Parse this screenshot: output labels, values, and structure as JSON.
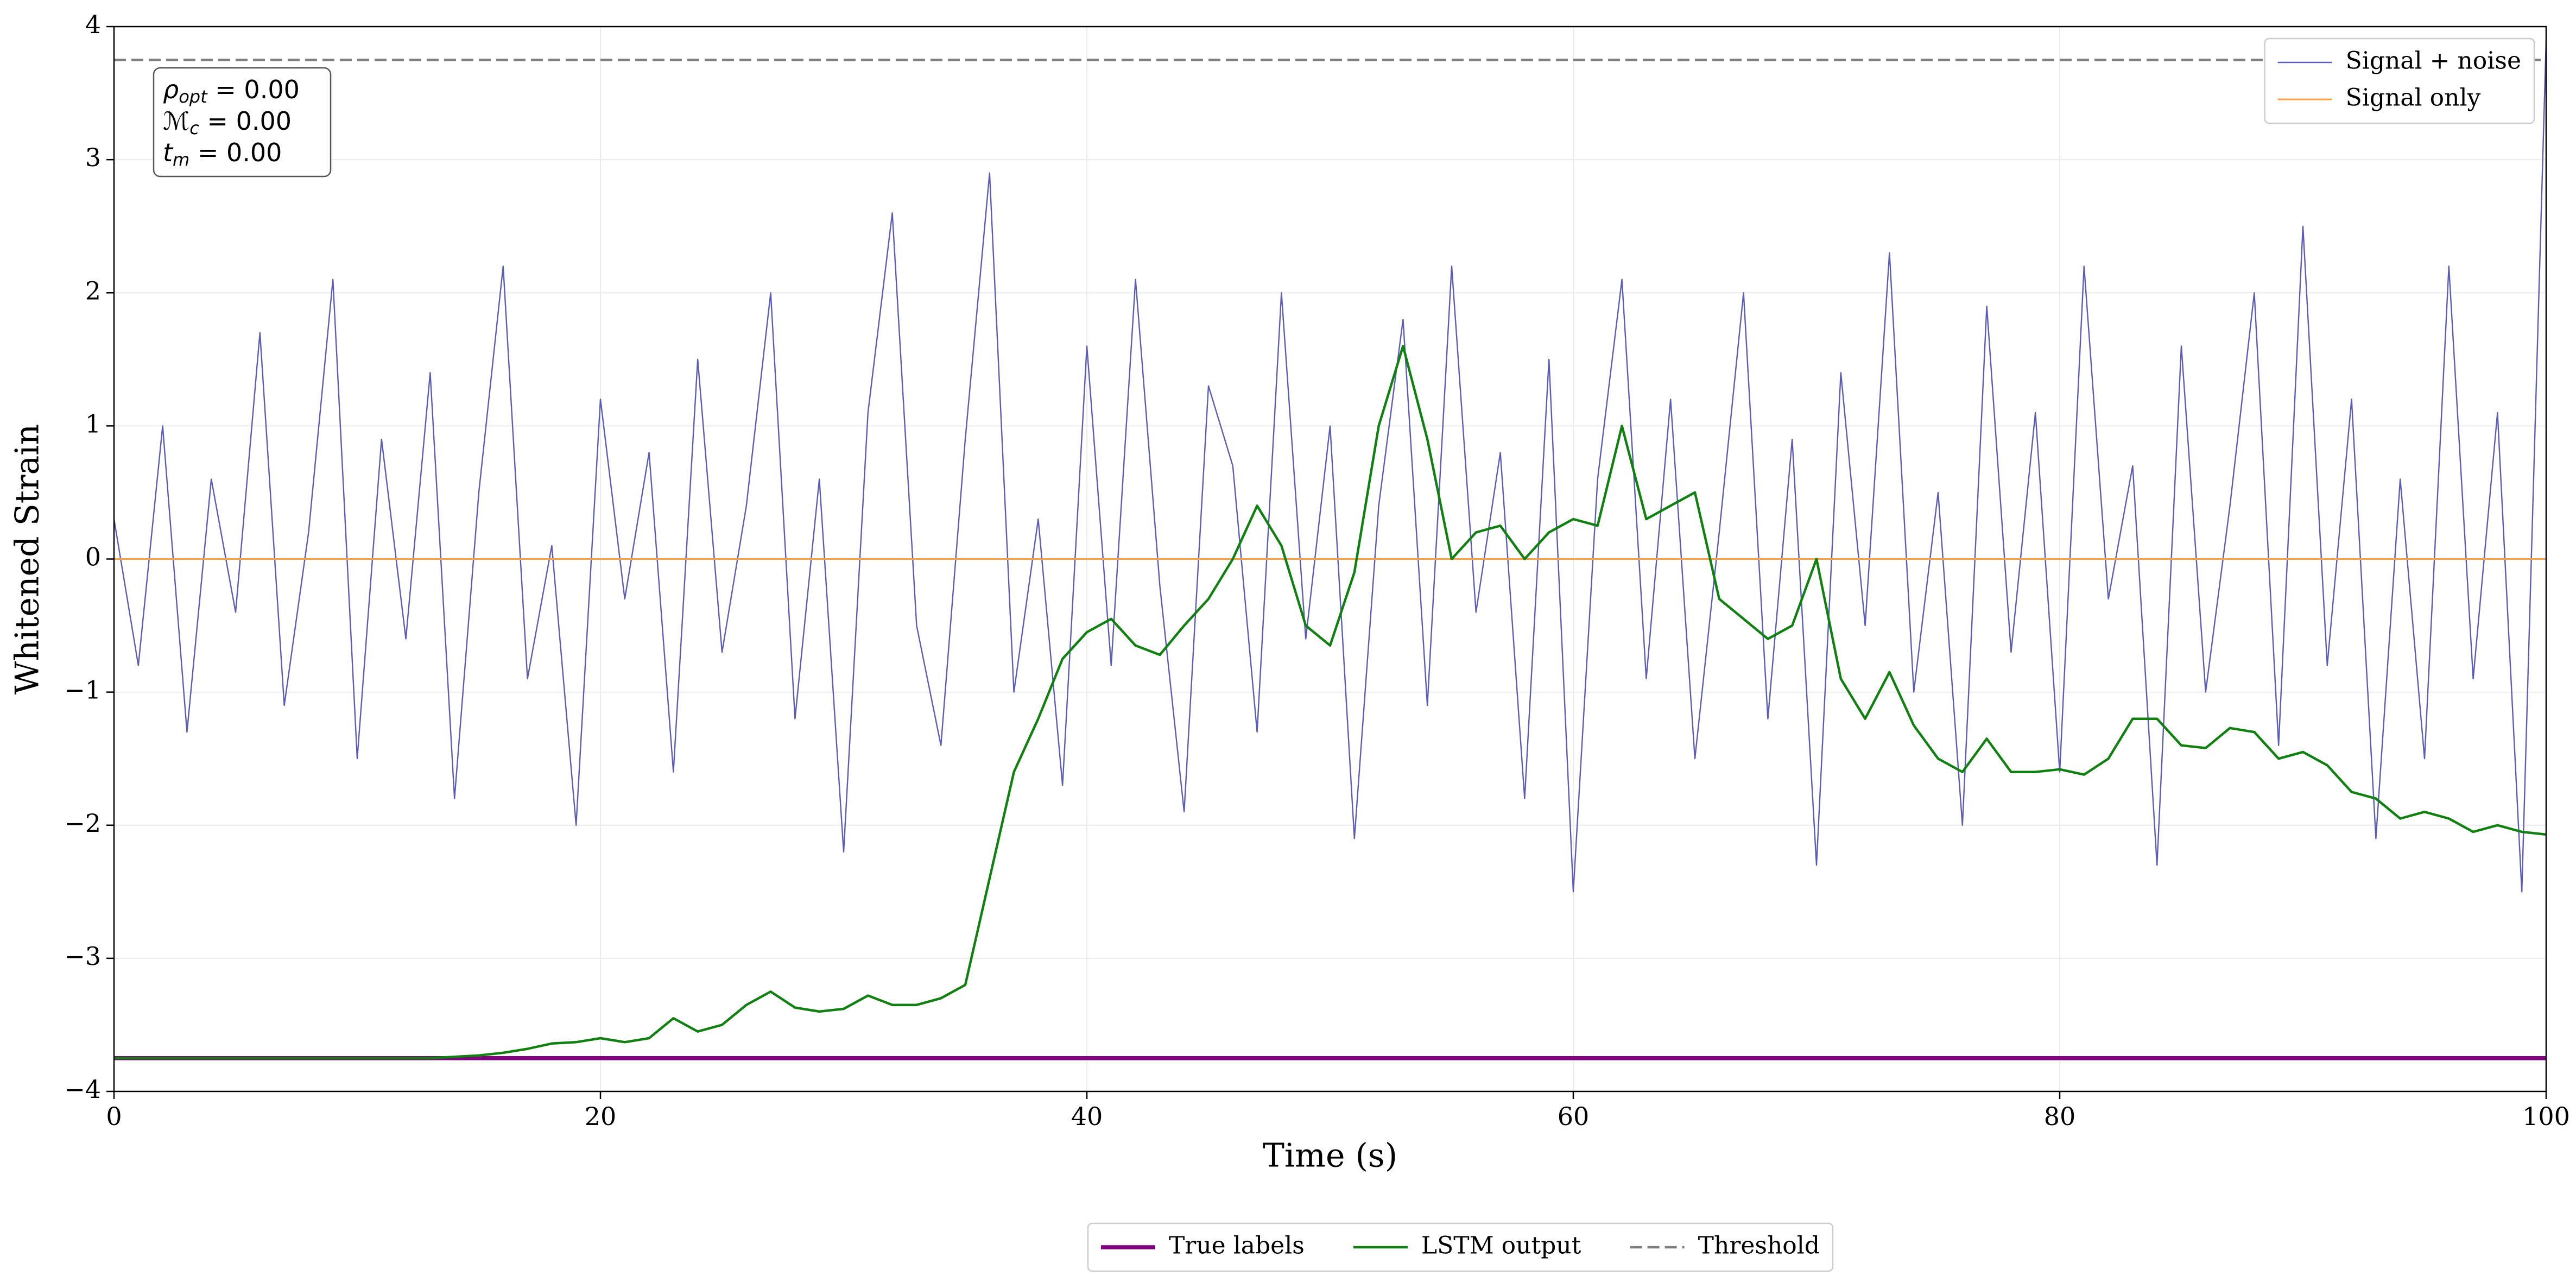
{
  "chart_data": {
    "type": "line",
    "xlabel": "Time (s)",
    "ylabel": "Whitened Strain",
    "xlim": [
      0,
      100
    ],
    "ylim": [
      -4,
      4
    ],
    "xticks": [
      0,
      20,
      40,
      60,
      80,
      100
    ],
    "yticks": [
      {
        "value": -4,
        "label": "−4"
      },
      {
        "value": -3,
        "label": "−3"
      },
      {
        "value": -2,
        "label": "−2"
      },
      {
        "value": -1,
        "label": "−1"
      },
      0,
      1,
      2,
      3,
      4
    ],
    "grid": true,
    "annotations": [
      {
        "symbol": "ρ",
        "sub": "opt",
        "text": " = 0.00"
      },
      {
        "symbol": "ℳ",
        "sub": "c",
        "text": " = 0.00"
      },
      {
        "symbol": "t",
        "sub": "m",
        "text": " = 0.00"
      }
    ],
    "x": [
      0,
      1,
      2,
      3,
      4,
      5,
      6,
      7,
      8,
      9,
      10,
      11,
      12,
      13,
      14,
      15,
      16,
      17,
      18,
      19,
      20,
      21,
      22,
      23,
      24,
      25,
      26,
      27,
      28,
      29,
      30,
      31,
      32,
      33,
      34,
      35,
      36,
      37,
      38,
      39,
      40,
      41,
      42,
      43,
      44,
      45,
      46,
      47,
      48,
      49,
      50,
      51,
      52,
      53,
      54,
      55,
      56,
      57,
      58,
      59,
      60,
      61,
      62,
      63,
      64,
      65,
      66,
      67,
      68,
      69,
      70,
      71,
      72,
      73,
      74,
      75,
      76,
      77,
      78,
      79,
      80,
      81,
      82,
      83,
      84,
      85,
      86,
      87,
      88,
      89,
      90,
      91,
      92,
      93,
      94,
      95,
      96,
      97,
      98,
      99,
      100
    ],
    "series": [
      {
        "name": "Signal + noise",
        "color": "#5b5bb8",
        "linewidth": 0.8,
        "style": "solid",
        "legend": "upper right",
        "values": [
          0.3,
          -0.8,
          1.0,
          -1.3,
          0.6,
          -0.4,
          1.7,
          -1.1,
          0.2,
          2.1,
          -1.5,
          0.9,
          -0.6,
          1.4,
          -1.8,
          0.5,
          2.2,
          -0.9,
          0.1,
          -2.0,
          1.2,
          -0.3,
          0.8,
          -1.6,
          1.5,
          -0.7,
          0.4,
          2.0,
          -1.2,
          0.6,
          -2.2,
          1.1,
          2.6,
          -0.5,
          -1.4,
          0.9,
          2.9,
          -1.0,
          0.3,
          -1.7,
          1.6,
          -0.8,
          2.1,
          -0.2,
          -1.9,
          1.3,
          0.7,
          -1.3,
          2.0,
          -0.6,
          1.0,
          -2.1,
          0.4,
          1.8,
          -1.1,
          2.2,
          -0.4,
          0.8,
          -1.8,
          1.5,
          -2.5,
          0.6,
          2.1,
          -0.9,
          1.2,
          -1.5,
          0.2,
          2.0,
          -1.2,
          0.9,
          -2.3,
          1.4,
          -0.5,
          2.3,
          -1.0,
          0.5,
          -2.0,
          1.9,
          -0.7,
          1.1,
          -1.6,
          2.2,
          -0.3,
          0.7,
          -2.3,
          1.6,
          -1.0,
          0.4,
          2.0,
          -1.4,
          2.5,
          -0.8,
          1.2,
          -2.1,
          0.6,
          -1.5,
          2.2,
          -0.9,
          1.1,
          -2.5,
          3.9
        ]
      },
      {
        "name": "Signal only",
        "color": "#ffa040",
        "linewidth": 1,
        "style": "solid",
        "legend": "upper right",
        "x": [
          0,
          100
        ],
        "values": [
          0,
          0
        ]
      },
      {
        "name": "True labels",
        "color": "#800080",
        "linewidth": 2.5,
        "style": "solid",
        "legend": "lower center",
        "x": [
          0,
          100
        ],
        "values": [
          -3.75,
          -3.75
        ]
      },
      {
        "name": "LSTM output",
        "color": "#108010",
        "linewidth": 1.5,
        "style": "solid",
        "legend": "lower center",
        "values": [
          -3.75,
          -3.75,
          -3.75,
          -3.75,
          -3.75,
          -3.75,
          -3.75,
          -3.75,
          -3.75,
          -3.75,
          -3.75,
          -3.75,
          -3.75,
          -3.75,
          -3.74,
          -3.73,
          -3.71,
          -3.68,
          -3.64,
          -3.63,
          -3.6,
          -3.63,
          -3.6,
          -3.45,
          -3.55,
          -3.5,
          -3.35,
          -3.25,
          -3.37,
          -3.4,
          -3.38,
          -3.28,
          -3.35,
          -3.35,
          -3.3,
          -3.2,
          -2.4,
          -1.6,
          -1.2,
          -0.75,
          -0.55,
          -0.45,
          -0.65,
          -0.72,
          -0.5,
          -0.3,
          0.0,
          0.4,
          0.1,
          -0.5,
          -0.65,
          -0.1,
          1.0,
          1.6,
          0.9,
          0.0,
          0.2,
          0.25,
          0.0,
          0.2,
          0.3,
          0.25,
          1.0,
          0.3,
          0.4,
          0.5,
          -0.3,
          -0.45,
          -0.6,
          -0.5,
          0.0,
          -0.9,
          -1.2,
          -0.85,
          -1.25,
          -1.5,
          -1.6,
          -1.35,
          -1.6,
          -1.6,
          -1.58,
          -1.62,
          -1.5,
          -1.2,
          -1.2,
          -1.4,
          -1.42,
          -1.27,
          -1.3,
          -1.5,
          -1.45,
          -1.55,
          -1.75,
          -1.8,
          -1.95,
          -1.9,
          -1.95,
          -2.05,
          -2.0,
          -2.05,
          -2.07
        ]
      },
      {
        "name": "Threshold",
        "color": "#808080",
        "linewidth": 1.5,
        "style": "dashed",
        "legend": "lower center",
        "x": [
          0,
          100
        ],
        "values": [
          3.75,
          3.75
        ]
      }
    ]
  }
}
